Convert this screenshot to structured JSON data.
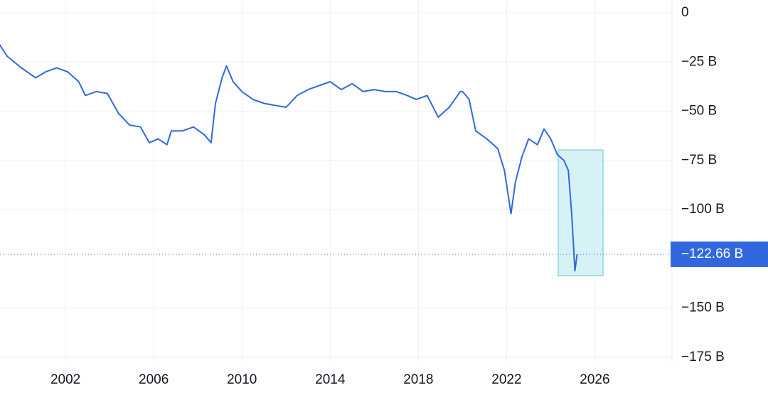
{
  "chart_data": {
    "type": "line",
    "x": [
      1999.0,
      1999.35,
      2000.0,
      2000.65,
      2001.1,
      2001.6,
      2002.1,
      2002.6,
      2002.9,
      2003.4,
      2003.9,
      2004.4,
      2004.9,
      2005.4,
      2005.8,
      2006.2,
      2006.6,
      2006.8,
      2007.3,
      2007.8,
      2008.3,
      2008.6,
      2008.8,
      2009.1,
      2009.3,
      2009.6,
      2010.0,
      2010.5,
      2011.0,
      2011.5,
      2012.0,
      2012.5,
      2013.0,
      2013.5,
      2014.0,
      2014.5,
      2015.0,
      2015.5,
      2016.0,
      2016.5,
      2017.0,
      2017.5,
      2017.9,
      2018.4,
      2018.9,
      2019.4,
      2019.9,
      2020.0,
      2020.3,
      2020.6,
      2021.1,
      2021.6,
      2021.9,
      2022.2,
      2022.4,
      2022.7,
      2023.0,
      2023.4,
      2023.7,
      2024.0,
      2024.3,
      2024.6,
      2024.8,
      2024.95,
      2025.1,
      2025.2
    ],
    "series": [
      {
        "color": "#3168e0",
        "values": [
          -16,
          -22,
          -28,
          -33,
          -30,
          -28,
          -30,
          -35,
          -42,
          -40,
          -41,
          -51,
          -57,
          -58,
          -66,
          -64,
          -67,
          -60,
          -60,
          -58,
          -62,
          -66,
          -46,
          -33,
          -27,
          -35,
          -40,
          -44,
          -46,
          -47,
          -48,
          -42,
          -39,
          -37,
          -35,
          -39,
          -36,
          -40,
          -39,
          -40,
          -40,
          -42,
          -44,
          -42,
          -53,
          -48,
          -40,
          -40,
          -44,
          -60,
          -64,
          -69,
          -80,
          -102,
          -86,
          -73,
          -64,
          -67,
          -59,
          -64,
          -72,
          -75,
          -80,
          -102,
          -131,
          -122.66
        ]
      }
    ],
    "last_label": "−122.66 B",
    "xlim": [
      1999.03,
      2029.5
    ],
    "xticks": [
      2002,
      2006,
      2010,
      2014,
      2018,
      2022,
      2026
    ],
    "ylim": [
      -175,
      0
    ],
    "yticks": [
      0,
      {
        "value": -25,
        "label": "−25 B"
      },
      {
        "value": -50,
        "label": "−50 B"
      },
      {
        "value": -75,
        "label": "−75 B"
      },
      {
        "value": -100,
        "label": "−100 B"
      },
      {
        "value": -150,
        "label": "−150 B"
      },
      {
        "value": -175,
        "label": "−175 B"
      }
    ],
    "grid": true
  }
}
